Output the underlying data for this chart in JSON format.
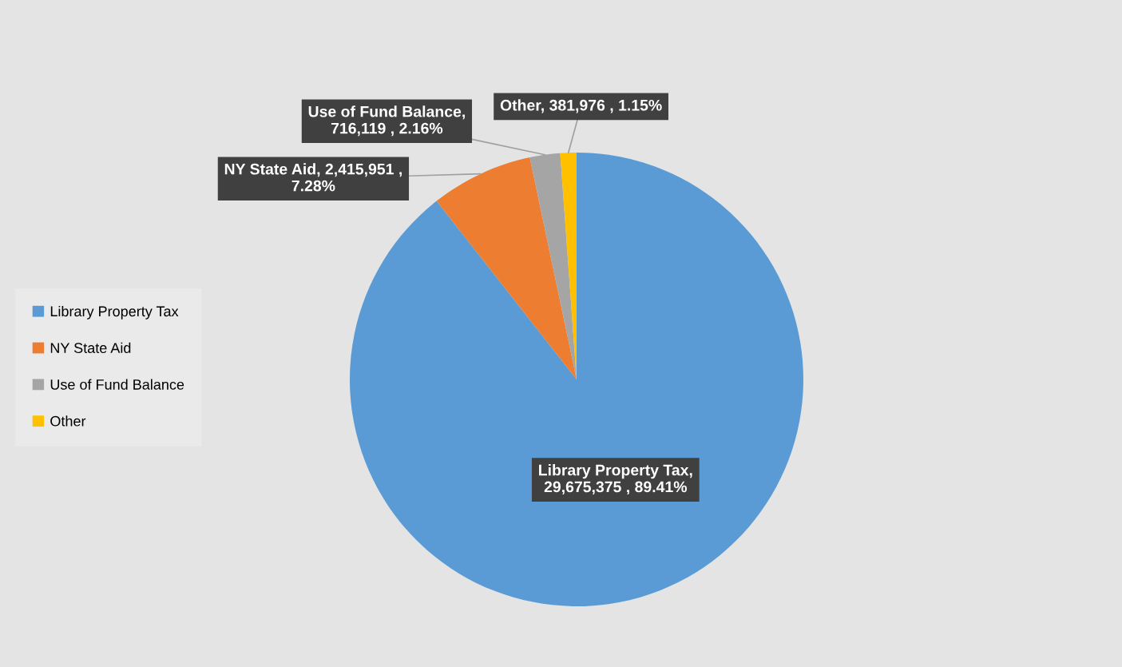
{
  "chart_data": {
    "type": "pie",
    "categories": [
      "Library Property Tax",
      "NY State Aid",
      "Use of Fund Balance",
      "Other"
    ],
    "values": [
      29675375,
      2415951,
      716119,
      381976
    ],
    "colors": [
      "#5b9bd5",
      "#ed7d31",
      "#a5a5a5",
      "#ffc000"
    ],
    "value_labels": [
      "Library Property Tax,\n29,675,375 , 89.41%",
      "NY State Aid, 2,415,951 ,\n7.28%",
      "Use of Fund Balance,\n716,119 , 2.16%",
      "Other, 381,976 , 1.15%"
    ],
    "legend": "left"
  }
}
